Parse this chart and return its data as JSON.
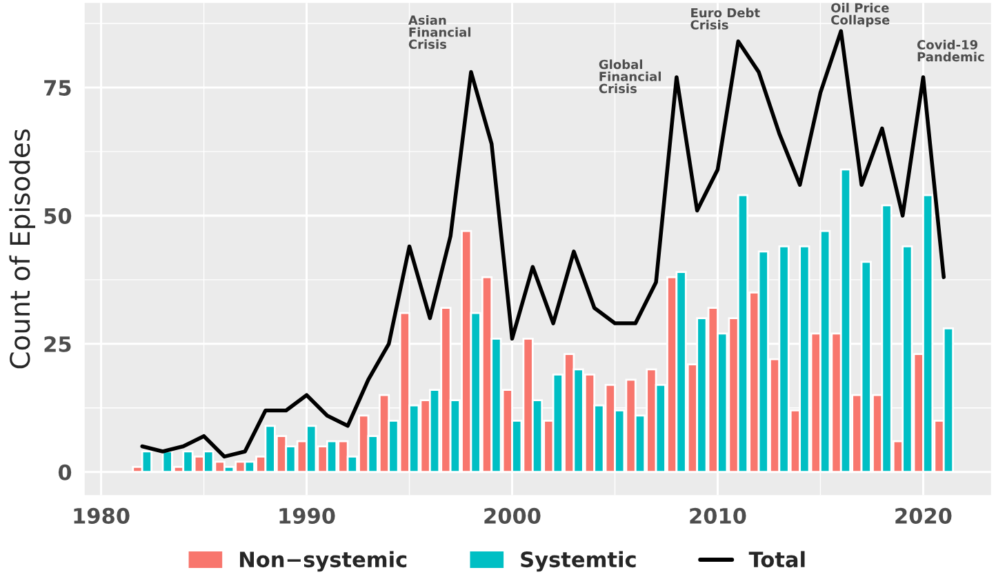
{
  "chart_data": {
    "type": "bar",
    "ylabel": "Count of Episodes",
    "x": [
      1982,
      1983,
      1984,
      1985,
      1986,
      1987,
      1988,
      1989,
      1990,
      1991,
      1992,
      1993,
      1994,
      1995,
      1996,
      1997,
      1998,
      1999,
      2000,
      2001,
      2002,
      2003,
      2004,
      2005,
      2006,
      2007,
      2008,
      2009,
      2010,
      2011,
      2012,
      2013,
      2014,
      2015,
      2016,
      2017,
      2018,
      2019,
      2020,
      2021
    ],
    "series": [
      {
        "name": "Non−systemic",
        "color": "#f8766d",
        "values": [
          1,
          null,
          1,
          3,
          2,
          2,
          3,
          7,
          6,
          5,
          6,
          11,
          15,
          31,
          14,
          32,
          47,
          38,
          16,
          26,
          10,
          23,
          19,
          17,
          18,
          20,
          38,
          21,
          32,
          30,
          35,
          22,
          12,
          27,
          27,
          15,
          15,
          6,
          23,
          10
        ]
      },
      {
        "name": "Systemtic",
        "color": "#00bfc4",
        "values": [
          4,
          4,
          4,
          4,
          1,
          2,
          9,
          5,
          9,
          6,
          3,
          7,
          10,
          13,
          16,
          14,
          31,
          26,
          10,
          14,
          19,
          20,
          13,
          12,
          11,
          17,
          39,
          30,
          27,
          54,
          43,
          44,
          44,
          47,
          59,
          41,
          52,
          44,
          54,
          28
        ]
      },
      {
        "name": "Total",
        "type": "line",
        "color": "#000000",
        "values": [
          5,
          4,
          5,
          7,
          3,
          4,
          12,
          12,
          15,
          11,
          9,
          18,
          25,
          44,
          30,
          46,
          78,
          64,
          26,
          40,
          29,
          43,
          32,
          29,
          29,
          37,
          77,
          51,
          59,
          84,
          78,
          66,
          56,
          74,
          86,
          56,
          67,
          50,
          77,
          38
        ]
      }
    ],
    "xlim": [
      1979.2,
      2023.3
    ],
    "xticks": [
      1980,
      1990,
      2000,
      2010,
      2020
    ],
    "ylim": [
      -4.5,
      91.5
    ],
    "yticks": [
      0,
      25,
      50,
      75
    ],
    "grid": true,
    "legend": "bottom",
    "annotations": [
      "Asian\nFinancial\nCrisis",
      "Global\nFinancial\nCrisis",
      "Euro Debt\nCrisis",
      "Oil Price\nCollapse",
      "Covid-19\nPandemic"
    ]
  }
}
